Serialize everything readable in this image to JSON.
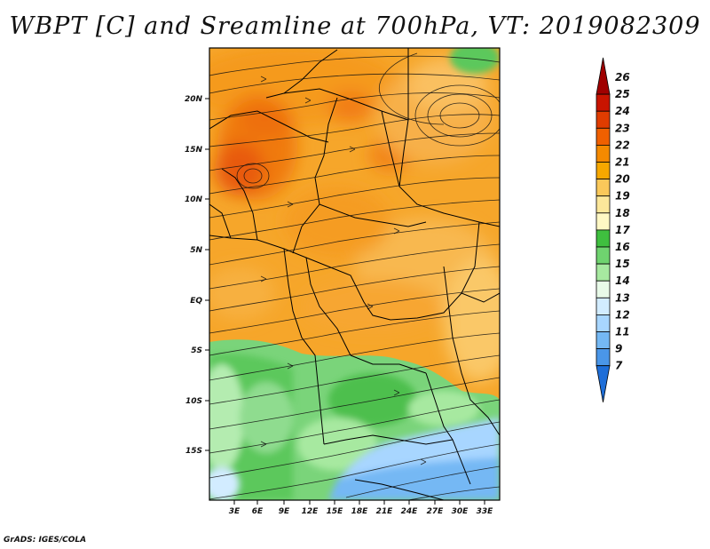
{
  "title": "WBPT [C] and Sreamline at 700hPa, VT: 2019082309",
  "footer": "GrADS: IGES/COLA",
  "map": {
    "field": "Wet-bulb potential temperature",
    "level": "700hPa",
    "valid_time": "2019082309",
    "lat_ticks": [
      "20N",
      "15N",
      "10N",
      "5N",
      "EQ",
      "5S",
      "10S",
      "15S"
    ],
    "lon_ticks": [
      "3E",
      "6E",
      "9E",
      "12E",
      "15E",
      "18E",
      "21E",
      "24E",
      "27E",
      "30E",
      "33E"
    ],
    "colors": {
      "frame": "#000000",
      "streamline": "#111111",
      "border": "#000000"
    }
  },
  "colorbar": {
    "labels": [
      "26",
      "25",
      "24",
      "23",
      "22",
      "21",
      "20",
      "19",
      "18",
      "17",
      "16",
      "15",
      "14",
      "13",
      "12",
      "11",
      "9",
      "7"
    ],
    "colors": [
      "#a00000",
      "#c81400",
      "#e03c00",
      "#f06000",
      "#f58a00",
      "#f7a800",
      "#fac85a",
      "#fce79a",
      "#fff8c4",
      "#3fbf3f",
      "#6fd36f",
      "#a7e9a0",
      "#e8fae8",
      "#d2ecff",
      "#a8d6ff",
      "#74b8f4",
      "#4a96e8",
      "#1e6ed8"
    ]
  }
}
